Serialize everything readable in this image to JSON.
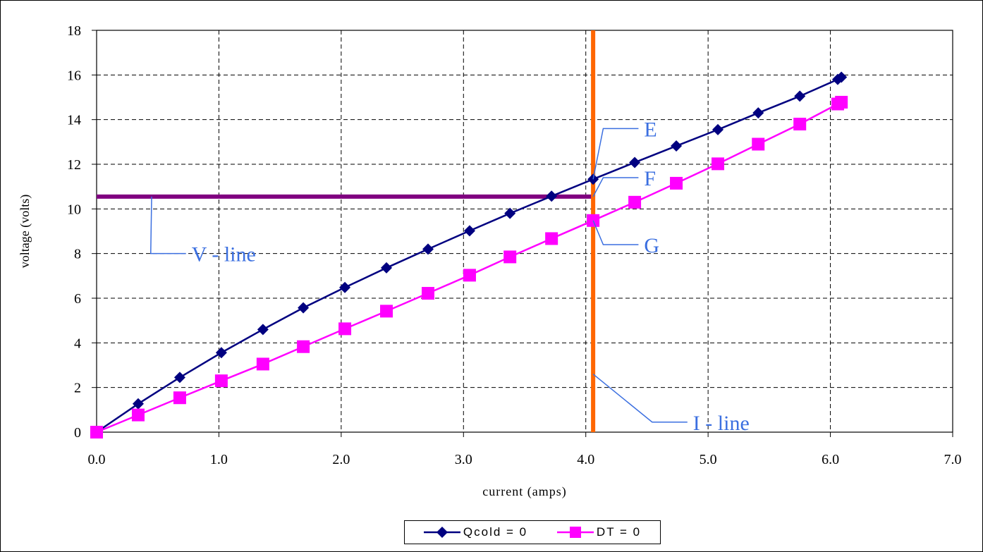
{
  "chart_data": {
    "type": "line",
    "xlabel": "current (amps)",
    "ylabel": "voltage (volts)",
    "xlim": [
      0,
      7
    ],
    "ylim": [
      0,
      18
    ],
    "xticks": [
      "0.0",
      "1.0",
      "2.0",
      "3.0",
      "4.0",
      "5.0",
      "6.0",
      "7.0"
    ],
    "yticks": [
      "0",
      "2",
      "4",
      "6",
      "8",
      "10",
      "12",
      "14",
      "16",
      "18"
    ],
    "grid": true,
    "legend_position": "bottom",
    "series": [
      {
        "name": "Qcold = 0",
        "color": "#000080",
        "marker": "diamond",
        "points": [
          [
            0.0,
            0.0
          ],
          [
            0.34,
            1.27
          ],
          [
            0.68,
            2.45
          ],
          [
            1.02,
            3.56
          ],
          [
            1.36,
            4.6
          ],
          [
            1.69,
            5.57
          ],
          [
            2.03,
            6.48
          ],
          [
            2.37,
            7.36
          ],
          [
            2.71,
            8.2
          ],
          [
            3.05,
            9.02
          ],
          [
            3.38,
            9.8
          ],
          [
            3.72,
            10.57
          ],
          [
            4.06,
            11.33
          ],
          [
            4.4,
            12.08
          ],
          [
            4.74,
            12.82
          ],
          [
            5.08,
            13.55
          ],
          [
            5.41,
            14.3
          ],
          [
            5.75,
            15.05
          ],
          [
            6.06,
            15.8
          ],
          [
            6.09,
            15.9
          ]
        ]
      },
      {
        "name": "DT = 0",
        "color": "#ff00ff",
        "marker": "square",
        "points": [
          [
            0.0,
            0.0
          ],
          [
            0.34,
            0.77
          ],
          [
            0.68,
            1.54
          ],
          [
            1.02,
            2.3
          ],
          [
            1.36,
            3.05
          ],
          [
            1.69,
            3.83
          ],
          [
            2.03,
            4.63
          ],
          [
            2.37,
            5.42
          ],
          [
            2.71,
            6.22
          ],
          [
            3.05,
            7.03
          ],
          [
            3.38,
            7.85
          ],
          [
            3.72,
            8.67
          ],
          [
            4.06,
            9.48
          ],
          [
            4.4,
            10.3
          ],
          [
            4.74,
            11.15
          ],
          [
            5.08,
            12.02
          ],
          [
            5.41,
            12.9
          ],
          [
            5.75,
            13.8
          ],
          [
            6.06,
            14.7
          ],
          [
            6.09,
            14.78
          ]
        ]
      }
    ],
    "reference_lines": [
      {
        "label": "V - line",
        "orientation": "horizontal",
        "value": 10.55,
        "from": 0.0,
        "to": 4.06,
        "color": "#800080"
      },
      {
        "label": "I - line",
        "orientation": "vertical",
        "value": 4.06,
        "from": 0,
        "to": 18,
        "color": "#ff6600"
      }
    ],
    "annotations": [
      {
        "text": "E",
        "point": [
          4.06,
          11.33
        ],
        "label_at": [
          4.5,
          13.6
        ]
      },
      {
        "text": "F",
        "point": [
          4.06,
          10.55
        ],
        "label_at": [
          4.5,
          11.4
        ]
      },
      {
        "text": "G",
        "point": [
          4.06,
          9.48
        ],
        "label_at": [
          4.5,
          8.4
        ]
      },
      {
        "text": "V - line",
        "point": [
          0.45,
          10.55
        ],
        "label_at": [
          0.8,
          8.0
        ]
      },
      {
        "text": "I - line",
        "point": [
          4.06,
          2.6
        ],
        "label_at": [
          4.9,
          0.45
        ]
      }
    ],
    "annotation_color": "#3b6fe0"
  }
}
